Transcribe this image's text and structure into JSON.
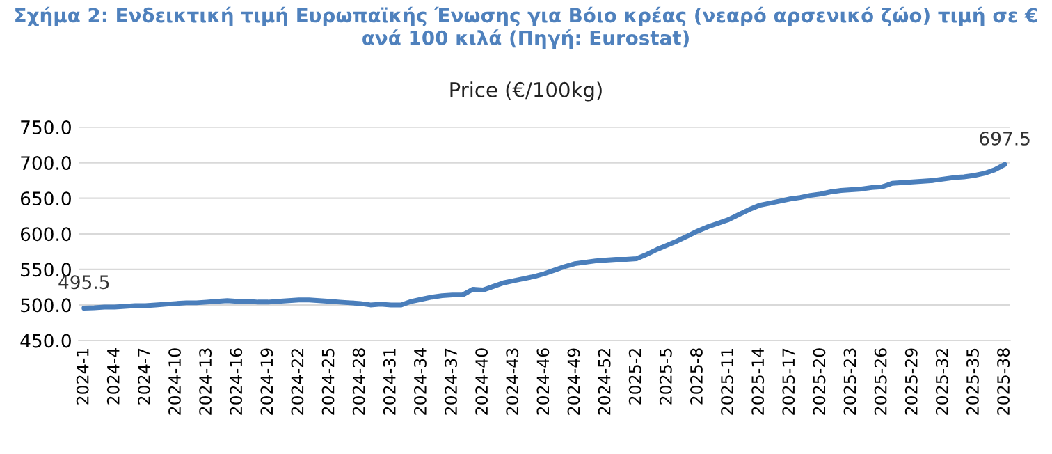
{
  "chart_data": {
    "type": "line",
    "title": "Σχήμα 2: Ενδεικτική τιμή Ευρωπαϊκής Ένωσης για Βόιο κρέας (νεαρό αρσενικό ζώο) τιμή σε € ανά 100 κιλά (Πηγή: Eurostat)",
    "subtitle": "Price (€/100kg)",
    "categories": [
      "2024-1",
      null,
      null,
      "2024-4",
      null,
      null,
      "2024-7",
      null,
      null,
      "2024-10",
      null,
      null,
      "2024-13",
      null,
      null,
      "2024-16",
      null,
      null,
      "2024-19",
      null,
      null,
      "2024-22",
      null,
      null,
      "2024-25",
      null,
      null,
      "2024-28",
      null,
      null,
      "2024-31",
      null,
      null,
      "2024-34",
      null,
      null,
      "2024-37",
      null,
      null,
      "2024-40",
      null,
      null,
      "2024-43",
      null,
      null,
      "2024-46",
      null,
      null,
      "2024-49",
      null,
      null,
      "2024-52",
      null,
      null,
      "2025-2",
      null,
      null,
      "2025-5",
      null,
      null,
      "2025-8",
      null,
      null,
      "2025-11",
      null,
      null,
      "2025-14",
      null,
      null,
      "2025-17",
      null,
      null,
      "2025-20",
      null,
      null,
      "2025-23",
      null,
      null,
      "2025-26",
      null,
      null,
      "2025-29",
      null,
      null,
      "2025-32",
      null,
      null,
      "2025-35",
      null,
      null,
      "2025-38"
    ],
    "series": [
      {
        "color": "#4a7ebb",
        "values": [
          495.5,
          496,
          497,
          497,
          498,
          499,
          499,
          500,
          501,
          502,
          503,
          503,
          504,
          505,
          506,
          505,
          505,
          504,
          504,
          505,
          506,
          507,
          507,
          506,
          505,
          504,
          503,
          502,
          500,
          501,
          500,
          500,
          505,
          508,
          511,
          513,
          514,
          514,
          522,
          521,
          526,
          531,
          534,
          537,
          540,
          544,
          549,
          554,
          558,
          560,
          562,
          563,
          564,
          564,
          565,
          571,
          578,
          584,
          590,
          597,
          604,
          610,
          615,
          620,
          627,
          634,
          640,
          643,
          646,
          649,
          651,
          654,
          656,
          659,
          661,
          662,
          663,
          665,
          666,
          671,
          672,
          673,
          674,
          675,
          677,
          679,
          680,
          682,
          685,
          690,
          697.5
        ],
        "value_labels": [
          "495.5",
          null,
          null,
          null,
          null,
          null,
          null,
          null,
          null,
          null,
          null,
          null,
          null,
          null,
          null,
          null,
          null,
          null,
          null,
          null,
          null,
          null,
          null,
          null,
          null,
          null,
          null,
          null,
          null,
          null,
          null,
          null,
          null,
          null,
          null,
          null,
          null,
          null,
          null,
          null,
          null,
          null,
          null,
          null,
          null,
          null,
          null,
          null,
          null,
          null,
          null,
          null,
          null,
          null,
          null,
          null,
          null,
          null,
          null,
          null,
          null,
          null,
          null,
          null,
          null,
          null,
          null,
          null,
          null,
          null,
          null,
          null,
          null,
          null,
          null,
          null,
          null,
          null,
          null,
          null,
          null,
          null,
          null,
          null,
          null,
          null,
          null,
          null,
          null,
          null,
          "697.5"
        ]
      }
    ],
    "ylim": [
      450,
      750
    ],
    "yticks": [
      {
        "value": 450,
        "label": "450.0"
      },
      {
        "value": 500,
        "label": "500.0"
      },
      {
        "value": 550,
        "label": "550.0"
      },
      {
        "value": 600,
        "label": "600.0"
      },
      {
        "value": 650,
        "label": "650.0"
      },
      {
        "value": 700,
        "label": "700.0"
      },
      {
        "value": 750,
        "label": "750.0"
      }
    ],
    "grid": "y"
  }
}
